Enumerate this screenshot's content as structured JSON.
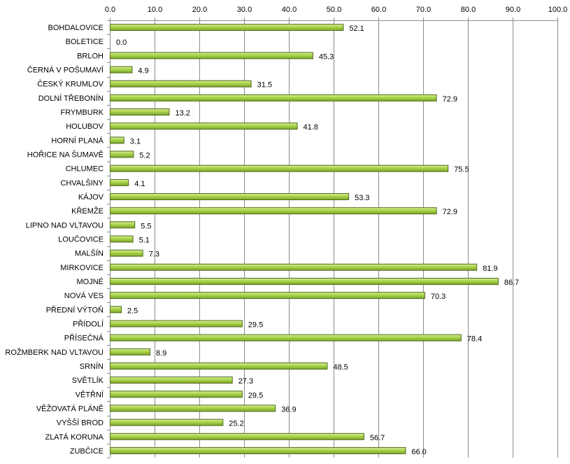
{
  "chart_data": {
    "type": "bar",
    "orientation": "horizontal",
    "title": "",
    "xlabel": "",
    "ylabel": "",
    "xlim": [
      0,
      100
    ],
    "x_ticks": [
      "0.0",
      "10.0",
      "20.0",
      "30.0",
      "40.0",
      "50.0",
      "60.0",
      "70.0",
      "80.0",
      "90.0",
      "100.0"
    ],
    "x_axis_position": "top",
    "grid": true,
    "legend": "none",
    "bar_color": "#9bc43a",
    "categories": [
      "BOHDALOVICE",
      "BOLETICE",
      "BRLOH",
      "ČERNÁ V POŠUMAVÍ",
      "ČESKÝ KRUMLOV",
      "DOLNÍ TŘEBONÍN",
      "FRYMBURK",
      "HOLUBOV",
      "HORNÍ PLANÁ",
      "HOŘICE NA ŠUMAVĚ",
      "CHLUMEC",
      "CHVALŠINY",
      "KÁJOV",
      "KŘEMŽE",
      "LIPNO NAD VLTAVOU",
      "LOUČOVICE",
      "MALŠÍN",
      "MIRKOVICE",
      "MOJNÉ",
      "NOVÁ VES",
      "PŘEDNÍ VÝTOŇ",
      "PŘÍDOLÍ",
      "PŘÍSEČNÁ",
      "ROŽMBERK NAD VLTAVOU",
      "SRNÍN",
      "SVĚTLÍK",
      "VĚTŘNÍ",
      "VĚŽOVATÁ PLÁNĚ",
      "VYŠŠÍ BROD",
      "ZLATÁ KORUNA",
      "ZUBČICE"
    ],
    "values": [
      52.1,
      0.0,
      45.3,
      4.9,
      31.5,
      72.9,
      13.2,
      41.8,
      3.1,
      5.2,
      75.5,
      4.1,
      53.3,
      72.9,
      5.5,
      5.1,
      7.3,
      81.9,
      86.7,
      70.3,
      2.5,
      29.5,
      78.4,
      8.9,
      48.5,
      27.3,
      29.5,
      36.9,
      25.2,
      56.7,
      66.0
    ],
    "value_labels": [
      "52.1",
      "0.0",
      "45.3",
      "4.9",
      "31.5",
      "72.9",
      "13.2",
      "41.8",
      "3.1",
      "5.2",
      "75.5",
      "4.1",
      "53.3",
      "72.9",
      "5.5",
      "5.1",
      "7.3",
      "81.9",
      "86.7",
      "70.3",
      "2.5",
      "29.5",
      "78.4",
      "8.9",
      "48.5",
      "27.3",
      "29.5",
      "36.9",
      "25.2",
      "56.7",
      "66.0"
    ]
  }
}
